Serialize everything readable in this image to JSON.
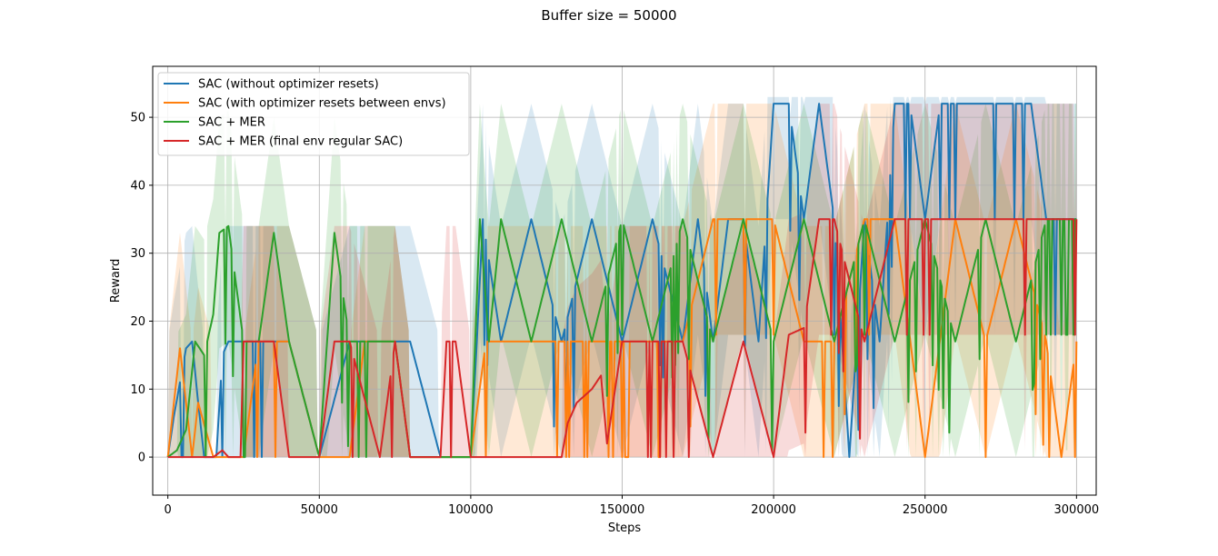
{
  "chart_data": {
    "type": "line",
    "title": "Buffer size = 50000",
    "xlabel": "Steps",
    "ylabel": "Reward",
    "xlim": [
      -5000,
      306500
    ],
    "ylim": [
      -5.6,
      57.5
    ],
    "xticks": [
      0,
      50000,
      100000,
      150000,
      200000,
      250000,
      300000
    ],
    "xtick_labels": [
      "0",
      "50000",
      "100000",
      "150000",
      "200000",
      "250000",
      "300000"
    ],
    "yticks": [
      0,
      10,
      20,
      30,
      40,
      50
    ],
    "ytick_labels": [
      "0",
      "10",
      "20",
      "30",
      "40",
      "50"
    ],
    "grid": true,
    "legend_position": "top-left",
    "series": [
      {
        "name": "SAC (without optimizer resets)",
        "color": "#1f77b4",
        "x": [
          0,
          2000,
          4000,
          6000,
          8000,
          10000,
          12000,
          14000,
          16000,
          18000,
          20000,
          25000,
          30000,
          40000,
          50000,
          60000,
          70000,
          80000,
          90000,
          100000,
          102000,
          104000,
          110000,
          120000,
          130000,
          140000,
          150000,
          160000,
          170000,
          175000,
          180000,
          185000,
          190000,
          195000,
          200000,
          205000,
          210000,
          215000,
          220000,
          225000,
          230000,
          235000,
          240000,
          245000,
          250000,
          255000,
          260000,
          265000,
          270000,
          275000,
          280000,
          285000,
          290000,
          295000,
          300000
        ],
        "values": [
          0,
          6,
          11,
          16,
          17,
          8,
          0,
          0,
          0,
          15,
          17,
          17,
          17,
          17,
          0,
          17,
          17,
          17,
          0,
          0,
          17,
          35,
          17,
          35,
          17,
          35,
          17,
          35,
          17,
          35,
          17,
          35,
          35,
          17,
          52,
          52,
          35,
          52,
          35,
          0,
          35,
          17,
          52,
          52,
          35,
          52,
          52,
          52,
          52,
          52,
          52,
          52,
          35,
          35,
          35
        ]
      },
      {
        "name": "SAC (with optimizer resets between envs)",
        "color": "#ff7f0e",
        "x": [
          0,
          4000,
          8000,
          10000,
          15000,
          20000,
          25000,
          30000,
          40000,
          50000,
          60000,
          65000,
          70000,
          75000,
          80000,
          85000,
          90000,
          100000,
          105000,
          110000,
          120000,
          130000,
          140000,
          150000,
          160000,
          170000,
          180000,
          190000,
          195000,
          200000,
          210000,
          220000,
          230000,
          240000,
          250000,
          260000,
          270000,
          280000,
          290000,
          295000,
          300000
        ],
        "values": [
          0,
          16,
          0,
          8,
          0,
          0,
          0,
          17,
          17,
          0,
          0,
          17,
          17,
          17,
          0,
          0,
          0,
          0,
          17,
          17,
          17,
          17,
          17,
          17,
          17,
          17,
          35,
          35,
          35,
          35,
          17,
          17,
          35,
          35,
          0,
          35,
          17,
          35,
          17,
          0,
          17
        ]
      },
      {
        "name": "SAC + MER",
        "color": "#2ca02c",
        "x": [
          0,
          3000,
          6000,
          9000,
          12000,
          15000,
          17000,
          20000,
          25000,
          30000,
          35000,
          40000,
          50000,
          55000,
          60000,
          70000,
          75000,
          80000,
          90000,
          100000,
          103000,
          106000,
          110000,
          120000,
          130000,
          140000,
          150000,
          160000,
          170000,
          180000,
          190000,
          200000,
          210000,
          220000,
          230000,
          240000,
          250000,
          260000,
          270000,
          280000,
          290000,
          300000
        ],
        "values": [
          0,
          1,
          4,
          17,
          15,
          21,
          33,
          34,
          17,
          17,
          33,
          17,
          0,
          33,
          17,
          17,
          17,
          0,
          0,
          0,
          35,
          17,
          35,
          17,
          35,
          17,
          35,
          17,
          35,
          17,
          35,
          17,
          35,
          17,
          35,
          17,
          35,
          17,
          35,
          17,
          35,
          35
        ]
      },
      {
        "name": "SAC + MER (final env regular SAC)",
        "color": "#d62728",
        "x": [
          0,
          15000,
          18000,
          20000,
          24000,
          25000,
          30000,
          35000,
          40000,
          50000,
          55000,
          60000,
          70000,
          75000,
          80000,
          90000,
          92000,
          95000,
          100000,
          110000,
          120000,
          130000,
          132000,
          135000,
          140000,
          143000,
          145000,
          150000,
          160000,
          170000,
          180000,
          190000,
          200000,
          205000,
          210000,
          215000,
          220000,
          230000,
          240000,
          250000,
          260000,
          270000,
          280000,
          290000,
          300000
        ],
        "values": [
          0,
          0,
          1,
          0,
          0,
          17,
          17,
          17,
          0,
          0,
          17,
          17,
          0,
          17,
          0,
          0,
          17,
          17,
          0,
          0,
          0,
          0,
          5,
          8,
          10,
          12,
          2,
          17,
          17,
          17,
          0,
          17,
          0,
          18,
          19,
          35,
          35,
          17,
          35,
          35,
          35,
          35,
          35,
          35,
          35
        ]
      }
    ]
  }
}
